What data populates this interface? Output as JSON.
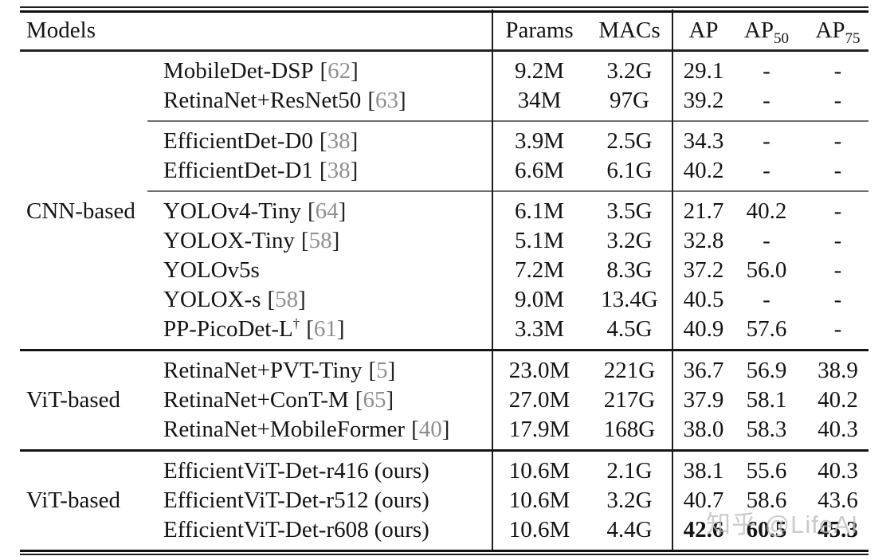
{
  "header": {
    "models": "Models",
    "params": "Params",
    "macs": "MACs",
    "ap": "AP",
    "ap50_base": "AP",
    "ap50_sub": "50",
    "ap75_base": "AP",
    "ap75_sub": "75"
  },
  "citation_format": {
    "open": "[",
    "close": "]"
  },
  "watermark": "知乎 @LifeAI",
  "colors": {
    "text": "#141414",
    "citation_number": "#8f8f8f",
    "rule_dark": "#111111",
    "rule_gray": "#6e6e6e",
    "watermark": "#bcbcbc"
  },
  "blocks": [
    {
      "rows": [
        {
          "group": "",
          "model": "MobileDet-DSP",
          "sup": "",
          "cite": "62",
          "note": "",
          "params": "9.2M",
          "macs": "3.2G",
          "ap": "29.1",
          "ap50": "-",
          "ap75": "-"
        },
        {
          "group": "",
          "model": "RetinaNet+ResNet50",
          "sup": "",
          "cite": "63",
          "note": "",
          "params": "34M",
          "macs": "97G",
          "ap": "39.2",
          "ap50": "-",
          "ap75": "-"
        }
      ]
    },
    {
      "rows": [
        {
          "group": "",
          "model": "EfficientDet-D0",
          "sup": "",
          "cite": "38",
          "note": "",
          "params": "3.9M",
          "macs": "2.5G",
          "ap": "34.3",
          "ap50": "-",
          "ap75": "-"
        },
        {
          "group": "",
          "model": "EfficientDet-D1",
          "sup": "",
          "cite": "38",
          "note": "",
          "params": "6.6M",
          "macs": "6.1G",
          "ap": "40.2",
          "ap50": "-",
          "ap75": "-"
        }
      ]
    },
    {
      "rows": [
        {
          "group": "CNN-based",
          "model": "YOLOv4-Tiny",
          "sup": "",
          "cite": "64",
          "note": "",
          "params": "6.1M",
          "macs": "3.5G",
          "ap": "21.7",
          "ap50": "40.2",
          "ap75": "-"
        },
        {
          "group": "",
          "model": "YOLOX-Tiny",
          "sup": "",
          "cite": "58",
          "note": "",
          "params": "5.1M",
          "macs": "3.2G",
          "ap": "32.8",
          "ap50": "-",
          "ap75": "-"
        },
        {
          "group": "",
          "model": "YOLOv5s",
          "sup": "",
          "cite": "",
          "note": "",
          "params": "7.2M",
          "macs": "8.3G",
          "ap": "37.2",
          "ap50": "56.0",
          "ap75": "-"
        },
        {
          "group": "",
          "model": "YOLOX-s",
          "sup": "",
          "cite": "58",
          "note": "",
          "params": "9.0M",
          "macs": "13.4G",
          "ap": "40.5",
          "ap50": "-",
          "ap75": "-"
        },
        {
          "group": "",
          "model": "PP-PicoDet-L",
          "sup": "†",
          "cite": "61",
          "note": "",
          "params": "3.3M",
          "macs": "4.5G",
          "ap": "40.9",
          "ap50": "57.6",
          "ap75": "-"
        }
      ]
    },
    {
      "rows": [
        {
          "group": "",
          "model": "RetinaNet+PVT-Tiny",
          "sup": "",
          "cite": "5",
          "note": "",
          "params": "23.0M",
          "macs": "221G",
          "ap": "36.7",
          "ap50": "56.9",
          "ap75": "38.9"
        },
        {
          "group": "ViT-based",
          "model": "RetinaNet+ConT-M",
          "sup": "",
          "cite": "65",
          "note": "",
          "params": "27.0M",
          "macs": "217G",
          "ap": "37.9",
          "ap50": "58.1",
          "ap75": "40.2"
        },
        {
          "group": "",
          "model": "RetinaNet+MobileFormer",
          "sup": "",
          "cite": "40",
          "note": "",
          "params": "17.9M",
          "macs": "168G",
          "ap": "38.0",
          "ap50": "58.3",
          "ap75": "40.3"
        }
      ]
    },
    {
      "rows": [
        {
          "group": "",
          "model": "EfficientViT-Det-r416",
          "sup": "",
          "cite": "",
          "note": "(ours)",
          "params": "10.6M",
          "macs": "2.1G",
          "ap": "38.1",
          "ap50": "55.6",
          "ap75": "40.3"
        },
        {
          "group": "ViT-based",
          "model": "EfficientViT-Det-r512",
          "sup": "",
          "cite": "",
          "note": "(ours)",
          "params": "10.6M",
          "macs": "3.2G",
          "ap": "40.7",
          "ap50": "58.6",
          "ap75": "43.6"
        },
        {
          "group": "",
          "model": "EfficientViT-Det-r608",
          "sup": "",
          "cite": "",
          "note": "(ours)",
          "params": "10.6M",
          "macs": "4.4G",
          "ap": "42.6",
          "ap50": "60.5",
          "ap75": "45.3"
        }
      ]
    }
  ]
}
